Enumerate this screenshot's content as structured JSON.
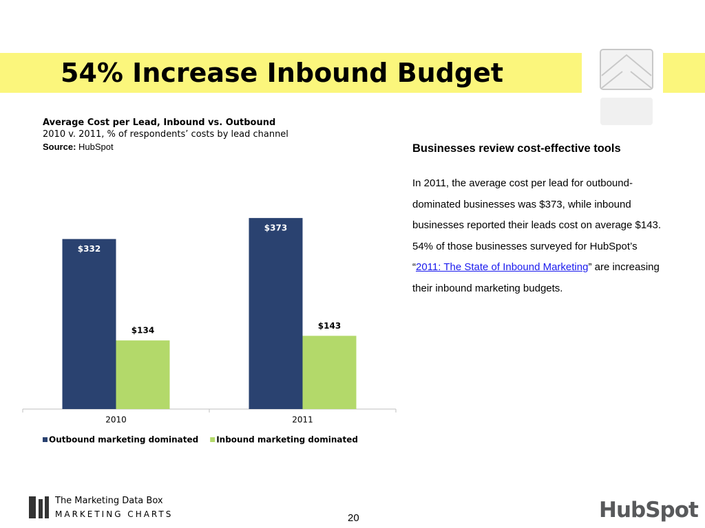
{
  "title": "54% Increase Inbound Budget",
  "chart_data": {
    "type": "bar",
    "title": "Average Cost per Lead, Inbound vs. Outbound",
    "subtitle": "2010 v. 2011, % of respondents’ costs by lead channel",
    "source_label": "Source:",
    "source": "HubSpot",
    "categories": [
      "2010",
      "2011"
    ],
    "series": [
      {
        "name": "Outbound marketing dominated",
        "color": "#2a4270",
        "values": [
          332,
          373
        ],
        "value_labels": [
          "$332",
          "$373"
        ]
      },
      {
        "name": "Inbound marketing dominated",
        "color": "#b3d96a",
        "values": [
          134,
          143
        ],
        "value_labels": [
          "$134",
          "$143"
        ]
      }
    ],
    "ylim": [
      0,
      400
    ],
    "grid": false,
    "legend": "bottom"
  },
  "body": {
    "heading": "Businesses review cost-effective tools",
    "text_before": "In 2011, the average cost per lead for outbound-dominated businesses was $373, while inbound businesses reported their leads cost on average $143. 54% of those businesses surveyed for HubSpot’s “",
    "link": "2011: The State of Inbound Marketing",
    "text_after": "” are increasing their inbound marketing budgets."
  },
  "footer": {
    "brand_line1": "The Marketing Data Box",
    "brand_line2": "MARKETING CHARTS",
    "page": "20",
    "logo": "HubSpot"
  }
}
